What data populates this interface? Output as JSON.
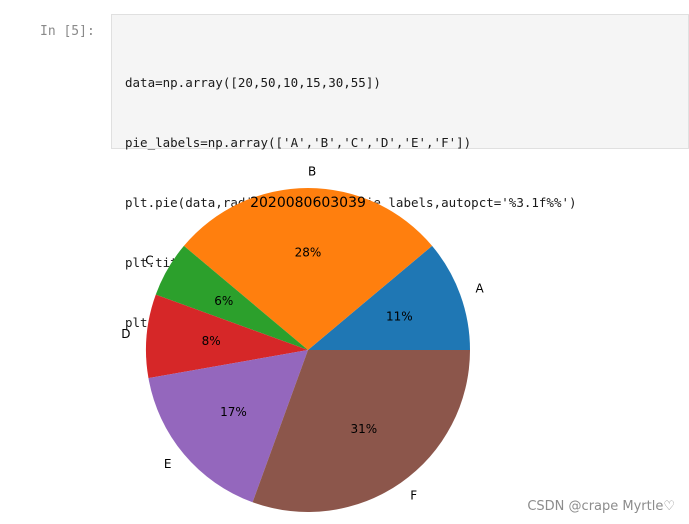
{
  "cell": {
    "prompt": "In [5]:",
    "code_lines": [
      "data=np.array([20,50,10,15,30,55])",
      "pie_labels=np.array(['A','B','C','D','E','F'])",
      "plt.pie(data,radius=1.5,labels=pie_labels,autopct='%3.1f%%')",
      "plt.title(\"2020080603039\")",
      "plt.show()"
    ]
  },
  "chart_data": {
    "type": "pie",
    "title": "2020080603039",
    "categories": [
      "A",
      "B",
      "C",
      "D",
      "E",
      "F"
    ],
    "values": [
      20,
      50,
      10,
      15,
      30,
      55
    ],
    "percent_labels": [
      "11%",
      "28%",
      "6%",
      "8%",
      "17%",
      "31%"
    ],
    "colors": [
      "#1f77b4",
      "#ff7f0e",
      "#2ca02c",
      "#d62728",
      "#9467bd",
      "#8c564b"
    ],
    "start_angle_deg": 0,
    "direction": "counterclockwise"
  },
  "watermark": "CSDN @crape Myrtle♡"
}
